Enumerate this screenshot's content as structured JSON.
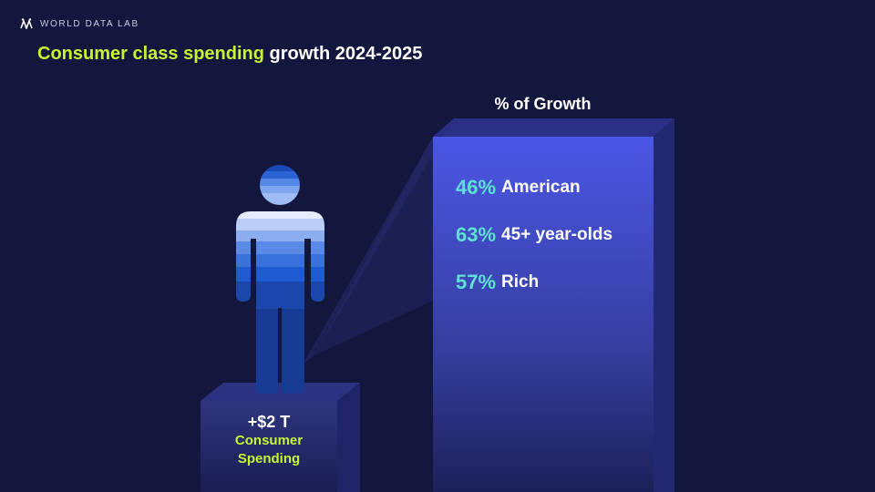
{
  "brand": {
    "name": "WORLD DATA LAB",
    "logo_icon": "wdl-logo-icon"
  },
  "title": {
    "highlight": "Consumer class spending",
    "rest": " growth 2024-2025"
  },
  "colors": {
    "background": "#13163d",
    "accent": "#c6f432",
    "teal": "#5ee3d2",
    "panel": "#4a55e0"
  },
  "growth_panel": {
    "title": "% of Growth",
    "items": [
      {
        "pct": "46%",
        "label": "American"
      },
      {
        "pct": "63%",
        "label": "45+ year-olds"
      },
      {
        "pct": "57%",
        "label": "Rich"
      }
    ]
  },
  "pedestal": {
    "amount": "+$2 T",
    "metric_line1": "Consumer",
    "metric_line2": "Spending"
  },
  "figure_icon": "person-icon"
}
